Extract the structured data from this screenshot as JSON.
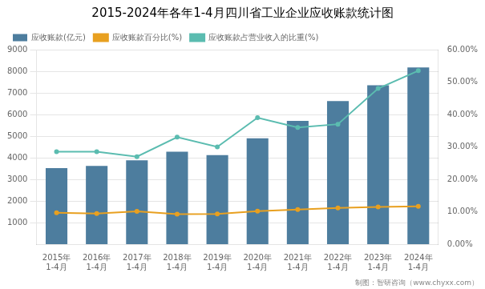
{
  "chart_data": {
    "type": "bar",
    "title": "2015-2024年各年1-4月四川省工业企业应收账款统计图",
    "categories": [
      "2015年\n1-4月",
      "2016年\n1-4月",
      "2017年\n1-4月",
      "2018年\n1-4月",
      "2019年\n1-4月",
      "2020年\n1-4月",
      "2021年\n1-4月",
      "2022年\n1-4月",
      "2023年\n1-4月",
      "2024年\n1-4月"
    ],
    "series": [
      {
        "name": "应收账款(亿元)",
        "color": "#4d7d9e",
        "values": [
          3520,
          3620,
          3880,
          4280,
          4120,
          4900,
          5700,
          6620,
          7350,
          8180
        ]
      },
      {
        "name": "应收账款百分比(%)",
        "type": "line",
        "color": "#e8a020",
        "values": [
          1450,
          1420,
          1520,
          1390,
          1400,
          1530,
          1600,
          1680,
          1720,
          1750
        ]
      },
      {
        "name": "应收账款占营业收入的比重(%)",
        "type": "line",
        "color": "#5bbcb0",
        "axis": "y2",
        "values": [
          28.5,
          28.5,
          27.0,
          33.0,
          30.0,
          39.0,
          36.0,
          37.0,
          48.0,
          53.5
        ]
      }
    ],
    "ylim": [
      0,
      9000
    ],
    "yticks": [
      1000,
      2000,
      3000,
      4000,
      5000,
      6000,
      7000,
      8000,
      9000
    ],
    "y2lim": [
      0,
      60.0
    ],
    "y2ticks": [
      {
        "value": 0,
        "label": "0.00%"
      },
      {
        "value": 10,
        "label": "10.00%"
      },
      {
        "value": 20,
        "label": "20.00%"
      },
      {
        "value": 30,
        "label": "30.00%"
      },
      {
        "value": 40,
        "label": "40.00%"
      },
      {
        "value": 50,
        "label": "50.00%"
      },
      {
        "value": 60,
        "label": "60.00%"
      }
    ],
    "grid": true,
    "legend": "upper left",
    "annotations": [
      "制图：智研咨询（www.chyxx.com）"
    ]
  }
}
